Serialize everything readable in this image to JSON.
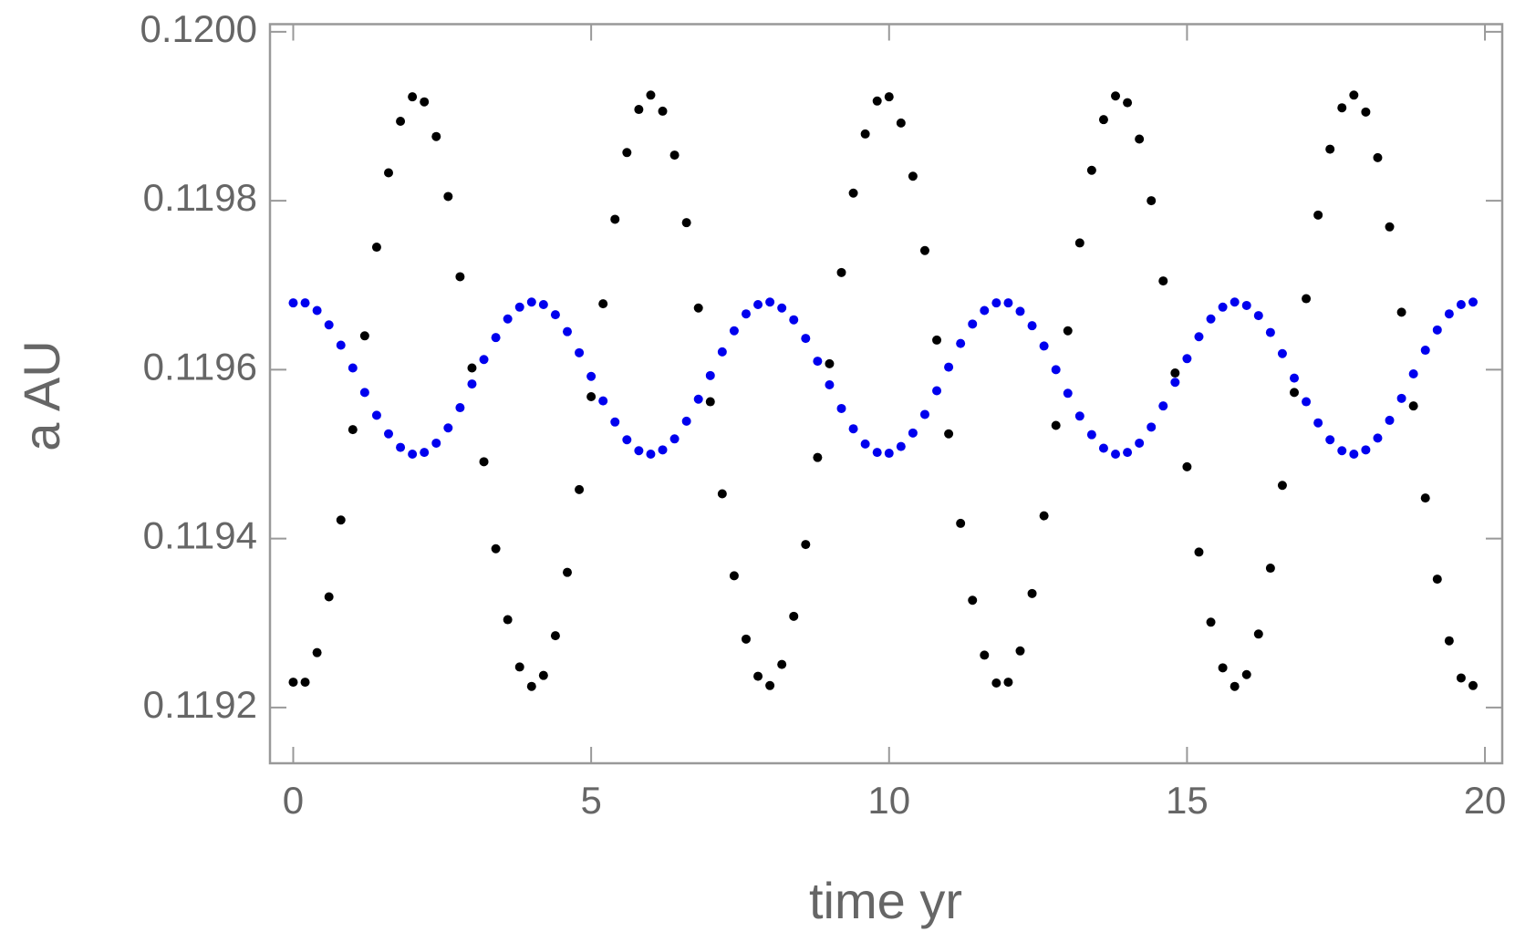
{
  "chart_data": {
    "type": "scatter",
    "x_label": "time  yr",
    "y_label": "a  AU",
    "x": [
      0,
      0.2,
      0.4,
      0.6,
      0.8,
      1,
      1.2,
      1.4,
      1.6,
      1.8,
      2,
      2.2,
      2.4,
      2.6,
      2.8,
      3,
      3.2,
      3.4,
      3.6,
      3.8,
      4,
      4.2,
      4.4,
      4.6,
      4.8,
      5,
      5.2,
      5.4,
      5.6,
      5.8,
      6,
      6.2,
      6.4,
      6.6,
      6.8,
      7,
      7.2,
      7.4,
      7.6,
      7.8,
      8,
      8.2,
      8.4,
      8.6,
      8.8,
      9,
      9.2,
      9.4,
      9.6,
      9.8,
      10,
      10.2,
      10.4,
      10.6,
      10.8,
      11,
      11.2,
      11.4,
      11.6,
      11.8,
      12,
      12.2,
      12.4,
      12.6,
      12.8,
      13,
      13.2,
      13.4,
      13.6,
      13.8,
      14,
      14.2,
      14.4,
      14.6,
      14.8,
      15,
      15.2,
      15.4,
      15.6,
      15.8,
      16,
      16.2,
      16.4,
      16.6,
      16.8,
      17,
      17.2,
      17.4,
      17.6,
      17.8,
      18,
      18.2,
      18.4,
      18.6,
      18.8,
      19,
      19.2,
      19.4,
      19.6,
      19.8
    ],
    "series": [
      {
        "color": "#000000",
        "values": [
          0.11923,
          0.11923,
          0.119265,
          0.119331,
          0.119422,
          0.119529,
          0.11964,
          0.119745,
          0.119833,
          0.119894,
          0.119923,
          0.119917,
          0.119876,
          0.119805,
          0.11971,
          0.119602,
          0.119491,
          0.119388,
          0.119304,
          0.119248,
          0.119225,
          0.119238,
          0.119285,
          0.11936,
          0.119458,
          0.119568,
          0.119678,
          0.119778,
          0.119857,
          0.119908,
          0.119925,
          0.119906,
          0.119854,
          0.119774,
          0.119673,
          0.119562,
          0.119453,
          0.119356,
          0.119281,
          0.119237,
          0.119226,
          0.119251,
          0.119308,
          0.119393,
          0.119496,
          0.119607,
          0.119715,
          0.119809,
          0.119879,
          0.119918,
          0.119923,
          0.119892,
          0.119829,
          0.119741,
          0.119635,
          0.119524,
          0.119418,
          0.119327,
          0.119262,
          0.119229,
          0.11923,
          0.119267,
          0.119335,
          0.119427,
          0.119534,
          0.119646,
          0.11975,
          0.119836,
          0.119896,
          0.119924,
          0.119916,
          0.119873,
          0.1198,
          0.119705,
          0.119596,
          0.119485,
          0.119384,
          0.119301,
          0.119247,
          0.119225,
          0.119239,
          0.119287,
          0.119365,
          0.119463,
          0.119573,
          0.119684,
          0.119783,
          0.119861,
          0.11991,
          0.119925,
          0.119905,
          0.119851,
          0.119769,
          0.119668,
          0.119557,
          0.119448,
          0.119352,
          0.119279,
          0.119235,
          0.119226
        ]
      },
      {
        "color": "#0000ee",
        "values": [
          0.119679,
          0.119679,
          0.11967,
          0.119653,
          0.119629,
          0.119602,
          0.119573,
          0.119546,
          0.119524,
          0.119508,
          0.1195,
          0.119502,
          0.119513,
          0.119531,
          0.119555,
          0.119583,
          0.119612,
          0.119638,
          0.11966,
          0.119674,
          0.11968,
          0.119677,
          0.119665,
          0.119645,
          0.11962,
          0.119592,
          0.119563,
          0.119538,
          0.119517,
          0.119504,
          0.1195,
          0.119505,
          0.119518,
          0.119539,
          0.119565,
          0.119593,
          0.119621,
          0.119646,
          0.119666,
          0.119677,
          0.11968,
          0.119673,
          0.119659,
          0.119637,
          0.11961,
          0.119582,
          0.119554,
          0.11953,
          0.119512,
          0.119502,
          0.119501,
          0.119509,
          0.119525,
          0.119547,
          0.119575,
          0.119603,
          0.119631,
          0.119654,
          0.11967,
          0.119679,
          0.119679,
          0.119669,
          0.119652,
          0.119628,
          0.1196,
          0.119572,
          0.119545,
          0.119523,
          0.119507,
          0.1195,
          0.119502,
          0.119513,
          0.119532,
          0.119557,
          0.119585,
          0.119613,
          0.119639,
          0.11966,
          0.119674,
          0.11968,
          0.119676,
          0.119664,
          0.119644,
          0.119619,
          0.11959,
          0.119562,
          0.119537,
          0.119517,
          0.119504,
          0.1195,
          0.119505,
          0.119519,
          0.11954,
          0.119566,
          0.119595,
          0.119623,
          0.119647,
          0.119666,
          0.119677,
          0.11968
        ]
      }
    ],
    "xlim": [
      -0.39,
      20.29
    ],
    "ylim": [
      0.119134,
      0.120009
    ],
    "xticks": [
      0,
      5,
      10,
      15,
      20
    ],
    "yticks": [
      0.1192,
      0.1194,
      0.1196,
      0.1198,
      {
        "value": 0.12,
        "label": "0.1200"
      }
    ],
    "grid": false
  }
}
